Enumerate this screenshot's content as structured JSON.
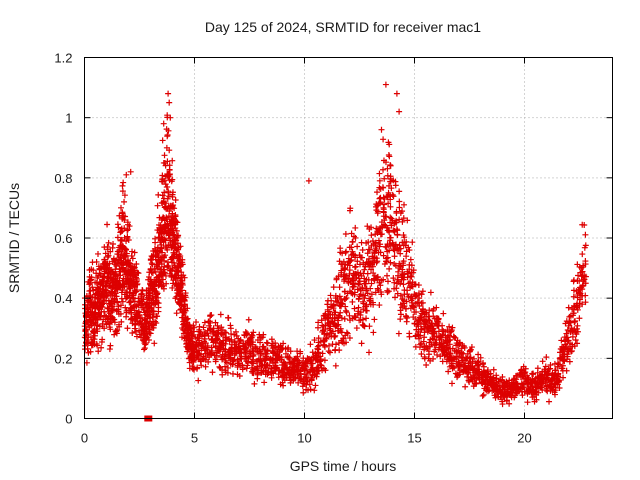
{
  "chart_data": {
    "type": "scatter",
    "title": "Day 125 of 2024, SRMTID for receiver mac1",
    "xlabel": "GPS time / hours",
    "ylabel": "SRMTID / TECUs",
    "xlim": [
      0,
      24
    ],
    "ylim": [
      0,
      1.2
    ],
    "xticks": [
      0,
      5,
      10,
      15,
      20
    ],
    "xtick_labels": [
      "0",
      "5",
      "10",
      "15",
      "20"
    ],
    "yticks": [
      0,
      0.2,
      0.4,
      0.6,
      0.8,
      1.0,
      1.2
    ],
    "ytick_labels": [
      "0",
      "0.2",
      "0.4",
      "0.6",
      "0.8",
      "1",
      "1.2"
    ],
    "grid": true,
    "marker": "plus",
    "color": "#dd0000",
    "series": [
      {
        "name": "SRMTID",
        "x": [
          0.0,
          0.1,
          0.2,
          0.3,
          0.4,
          0.5,
          0.6,
          0.7,
          0.8,
          0.9,
          1.0,
          1.1,
          1.2,
          1.3,
          1.4,
          1.5,
          1.6,
          1.7,
          1.8,
          1.9,
          2.0,
          2.1,
          2.2,
          2.3,
          2.4,
          2.6,
          2.7,
          2.8,
          2.9,
          3.0,
          3.1,
          3.2,
          3.3,
          3.4,
          3.5,
          3.6,
          3.7,
          3.8,
          3.9,
          4.0,
          4.1,
          4.2,
          4.3,
          4.4,
          4.5,
          4.6,
          4.7,
          4.8,
          4.9,
          5.0,
          5.2,
          5.4,
          5.6,
          5.8,
          6.0,
          6.2,
          6.4,
          6.6,
          6.8,
          7.0,
          7.2,
          7.4,
          7.6,
          7.8,
          8.0,
          8.2,
          8.4,
          8.6,
          8.8,
          9.0,
          9.2,
          9.4,
          9.6,
          9.8,
          10.0,
          10.2,
          10.4,
          10.6,
          10.8,
          11.0,
          11.2,
          11.4,
          11.6,
          11.8,
          12.0,
          12.2,
          12.4,
          12.6,
          12.8,
          13.0,
          13.2,
          13.4,
          13.6,
          13.8,
          14.0,
          14.2,
          14.4,
          14.6,
          14.8,
          15.0,
          15.2,
          15.4,
          15.6,
          15.8,
          16.0,
          16.2,
          16.4,
          16.6,
          16.8,
          17.0,
          17.2,
          17.4,
          17.6,
          17.8,
          18.0,
          18.2,
          18.4,
          18.6,
          18.8,
          19.0,
          19.2,
          19.4,
          19.6,
          19.8,
          20.0,
          20.2,
          20.4,
          20.6,
          20.8,
          21.0,
          21.2,
          21.4,
          21.6,
          21.8,
          22.0,
          22.2,
          22.4,
          22.6,
          22.8
        ],
        "y_mid": [
          0.3,
          0.32,
          0.36,
          0.38,
          0.34,
          0.36,
          0.4,
          0.42,
          0.4,
          0.45,
          0.46,
          0.42,
          0.44,
          0.4,
          0.45,
          0.48,
          0.52,
          0.55,
          0.54,
          0.48,
          0.45,
          0.42,
          0.4,
          0.38,
          0.35,
          0.32,
          0.3,
          0.34,
          0.38,
          0.42,
          0.4,
          0.45,
          0.5,
          0.55,
          0.62,
          0.68,
          0.72,
          0.7,
          0.65,
          0.62,
          0.55,
          0.48,
          0.45,
          0.4,
          0.35,
          0.3,
          0.26,
          0.24,
          0.22,
          0.23,
          0.24,
          0.26,
          0.27,
          0.25,
          0.24,
          0.23,
          0.24,
          0.22,
          0.21,
          0.22,
          0.23,
          0.24,
          0.22,
          0.21,
          0.2,
          0.2,
          0.21,
          0.2,
          0.19,
          0.18,
          0.17,
          0.16,
          0.16,
          0.15,
          0.15,
          0.16,
          0.18,
          0.22,
          0.26,
          0.3,
          0.33,
          0.35,
          0.4,
          0.45,
          0.48,
          0.46,
          0.44,
          0.42,
          0.46,
          0.52,
          0.56,
          0.62,
          0.68,
          0.66,
          0.6,
          0.55,
          0.5,
          0.45,
          0.4,
          0.35,
          0.32,
          0.3,
          0.28,
          0.28,
          0.27,
          0.25,
          0.24,
          0.22,
          0.22,
          0.2,
          0.18,
          0.17,
          0.16,
          0.15,
          0.14,
          0.13,
          0.12,
          0.11,
          0.1,
          0.09,
          0.09,
          0.1,
          0.11,
          0.12,
          0.12,
          0.11,
          0.1,
          0.12,
          0.14,
          0.13,
          0.12,
          0.14,
          0.2,
          0.24,
          0.28,
          0.34,
          0.42,
          0.5,
          0.55
        ],
        "y_spread": [
          0.15,
          0.18,
          0.2,
          0.2,
          0.18,
          0.2,
          0.22,
          0.22,
          0.2,
          0.22,
          0.24,
          0.22,
          0.22,
          0.2,
          0.22,
          0.25,
          0.28,
          0.3,
          0.28,
          0.25,
          0.22,
          0.22,
          0.2,
          0.2,
          0.18,
          0.16,
          0.15,
          0.18,
          0.2,
          0.22,
          0.22,
          0.24,
          0.28,
          0.32,
          0.36,
          0.38,
          0.38,
          0.36,
          0.34,
          0.3,
          0.28,
          0.24,
          0.22,
          0.2,
          0.16,
          0.14,
          0.12,
          0.11,
          0.11,
          0.12,
          0.13,
          0.14,
          0.14,
          0.13,
          0.13,
          0.12,
          0.12,
          0.12,
          0.11,
          0.11,
          0.11,
          0.12,
          0.12,
          0.11,
          0.11,
          0.11,
          0.11,
          0.11,
          0.1,
          0.1,
          0.1,
          0.1,
          0.09,
          0.09,
          0.09,
          0.1,
          0.11,
          0.13,
          0.16,
          0.19,
          0.21,
          0.22,
          0.25,
          0.28,
          0.3,
          0.28,
          0.27,
          0.26,
          0.28,
          0.3,
          0.34,
          0.38,
          0.42,
          0.4,
          0.36,
          0.33,
          0.3,
          0.26,
          0.22,
          0.2,
          0.18,
          0.17,
          0.16,
          0.15,
          0.14,
          0.13,
          0.12,
          0.12,
          0.11,
          0.1,
          0.1,
          0.09,
          0.09,
          0.08,
          0.08,
          0.07,
          0.07,
          0.06,
          0.06,
          0.05,
          0.05,
          0.06,
          0.06,
          0.07,
          0.07,
          0.07,
          0.06,
          0.07,
          0.08,
          0.08,
          0.07,
          0.08,
          0.1,
          0.12,
          0.14,
          0.17,
          0.2,
          0.22,
          0.24
        ],
        "y_max_visible": 1.11
      }
    ],
    "annotations": [
      {
        "type": "baseline-mark",
        "x": 2.9,
        "y": 0.0,
        "note": "small square marker on x axis"
      }
    ]
  }
}
